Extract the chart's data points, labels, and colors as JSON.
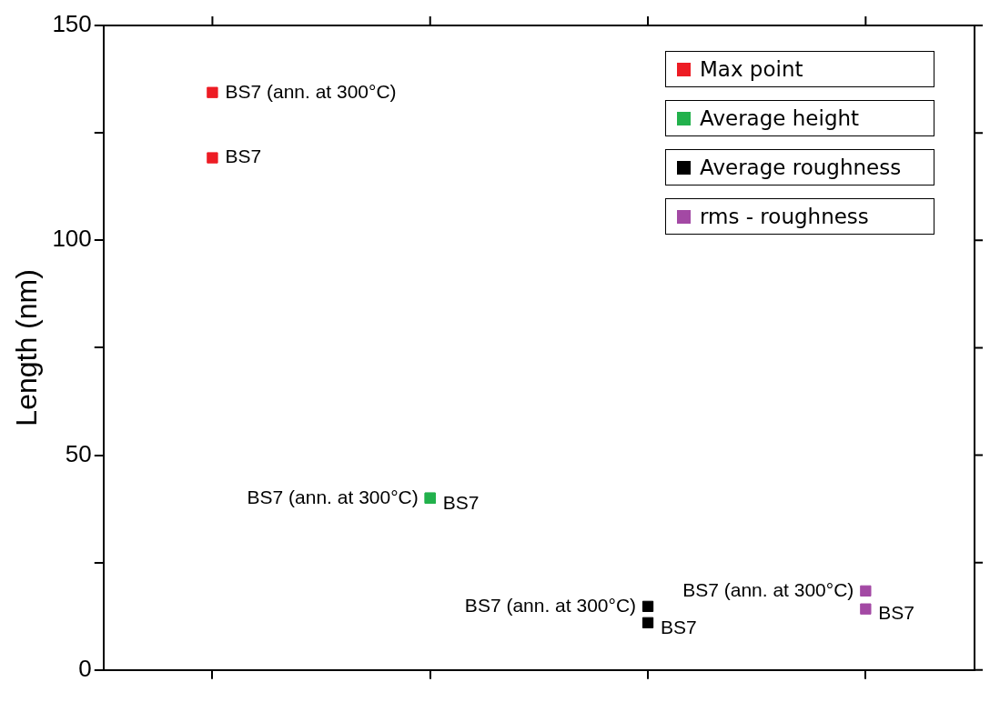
{
  "chart_data": {
    "type": "scatter",
    "ylabel": "Length (nm)",
    "categories": [
      null,
      null,
      null,
      null
    ],
    "ylim": [
      0,
      150
    ],
    "yticks": [
      0,
      {
        "value": 25,
        "label": null
      },
      50,
      {
        "value": 75,
        "label": null
      },
      100,
      {
        "value": 125,
        "label": null
      },
      150
    ],
    "marker": "square",
    "legend": "top right",
    "series": [
      {
        "name": "Max point",
        "color": "#ed1c24",
        "values": [
          134.4,
          null,
          null,
          null
        ],
        "value_labels": [
          "BS7 (ann. at 300°C)",
          null,
          null,
          null
        ]
      },
      {
        "color": "#ed1c24",
        "values": [
          119.2,
          null,
          null,
          null
        ],
        "value_labels": [
          "BS7",
          null,
          null,
          null
        ]
      },
      {
        "name": "Average height",
        "color": "#22b14c",
        "values": [
          null,
          40,
          null,
          null
        ],
        "value_labels": [
          null,
          "BS7 (ann. at 300°C)",
          null,
          null
        ]
      },
      {
        "color": "#22b14c",
        "values": [
          null,
          40,
          null,
          null
        ],
        "value_labels": [
          null,
          "BS7",
          null,
          null
        ]
      },
      {
        "name": "Average roughness",
        "color": "#000000",
        "values": [
          null,
          null,
          14.8,
          null
        ],
        "value_labels": [
          null,
          null,
          "BS7 (ann. at 300°C)",
          null
        ]
      },
      {
        "color": "#000000",
        "values": [
          null,
          null,
          11,
          null
        ],
        "value_labels": [
          null,
          null,
          "BS7",
          null
        ]
      },
      {
        "name": "rms - roughness",
        "color": "#a349a4",
        "values": [
          null,
          null,
          null,
          18.4
        ],
        "value_labels": [
          null,
          null,
          null,
          "BS7 (ann. at 300°C)"
        ]
      },
      {
        "color": "#a349a4",
        "values": [
          null,
          null,
          null,
          14.2
        ],
        "value_labels": [
          null,
          null,
          null,
          "BS7"
        ]
      }
    ]
  }
}
